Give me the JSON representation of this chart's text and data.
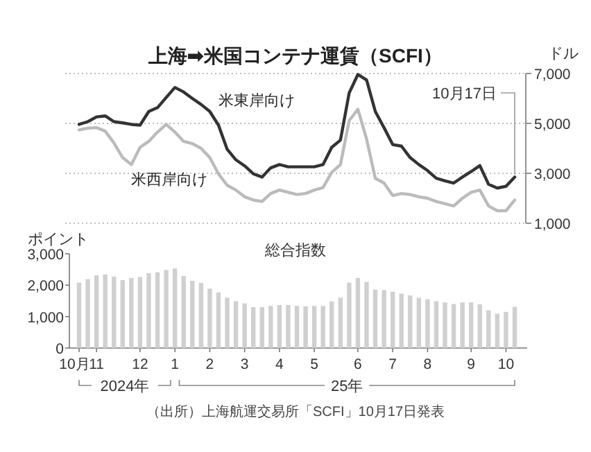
{
  "chart_data": [
    {
      "type": "line",
      "title": "上海➡米国コンテナ運賃（SCFI）",
      "ylabel": "ドル",
      "tick_labels": "y",
      "grid": "y",
      "categories": [
        null,
        null,
        null,
        null,
        null,
        null,
        null,
        null,
        null,
        null,
        null,
        null,
        null,
        null,
        null,
        null,
        null,
        null,
        null,
        null,
        null,
        null,
        null,
        null,
        null,
        null,
        null,
        null,
        null,
        null,
        null,
        null,
        null,
        null,
        null,
        null,
        null,
        null,
        null,
        null,
        null,
        null,
        null,
        null,
        null,
        null,
        null,
        null,
        null,
        null,
        null
      ],
      "ylim": [
        1000,
        7000
      ],
      "yticks": [
        {
          "value": 1000,
          "label": "1,000"
        },
        {
          "value": 3000,
          "label": "3,000"
        },
        {
          "value": 5000,
          "label": "5,000"
        },
        {
          "value": 7000,
          "label": "7,000"
        }
      ],
      "series": [
        {
          "name": "米東岸向け",
          "color": "#333333",
          "values": [
            4960,
            5070,
            5260,
            5300,
            5070,
            5020,
            4960,
            4930,
            5480,
            5630,
            6040,
            6440,
            6260,
            6000,
            5760,
            5480,
            4930,
            3960,
            3540,
            3300,
            2980,
            2850,
            3220,
            3350,
            3260,
            3260,
            3260,
            3260,
            3350,
            4040,
            4330,
            6220,
            6960,
            6740,
            5480,
            4830,
            4150,
            4090,
            3630,
            3350,
            3110,
            2800,
            2700,
            2610,
            2850,
            3070,
            3310,
            2560,
            2410,
            2480,
            2850
          ]
        },
        {
          "name": "米西岸向け",
          "color": "#bbbbbb",
          "values": [
            4740,
            4810,
            4830,
            4690,
            4220,
            3630,
            3350,
            4040,
            4280,
            4650,
            4960,
            4650,
            4280,
            4190,
            4000,
            3630,
            2980,
            2520,
            2330,
            2060,
            1930,
            1870,
            2190,
            2330,
            2240,
            2150,
            2190,
            2330,
            2430,
            3040,
            3350,
            5110,
            5570,
            4370,
            2800,
            2610,
            2110,
            2190,
            2150,
            2060,
            2000,
            1870,
            1780,
            1690,
            2000,
            2240,
            2330,
            1690,
            1500,
            1500,
            1930
          ]
        }
      ],
      "annotations": [
        "10月17日"
      ]
    },
    {
      "type": "bar",
      "title": "総合指数",
      "ylabel": "ポイント",
      "color": "#d0d0d0",
      "categories": [
        "10月",
        null,
        "11",
        null,
        null,
        null,
        null,
        "12",
        null,
        null,
        null,
        "1",
        null,
        null,
        null,
        "2",
        null,
        null,
        null,
        "3",
        null,
        null,
        null,
        "4",
        null,
        null,
        null,
        "5",
        null,
        null,
        null,
        null,
        "6",
        null,
        null,
        null,
        "7",
        null,
        null,
        null,
        "8",
        null,
        null,
        null,
        null,
        "9",
        null,
        null,
        null,
        "10",
        null
      ],
      "values": [
        2080,
        2190,
        2310,
        2340,
        2270,
        2160,
        2230,
        2260,
        2380,
        2410,
        2480,
        2530,
        2290,
        2140,
        2070,
        1890,
        1770,
        1600,
        1490,
        1420,
        1300,
        1300,
        1340,
        1370,
        1370,
        1340,
        1330,
        1340,
        1340,
        1480,
        1600,
        2080,
        2230,
        2100,
        1860,
        1840,
        1790,
        1730,
        1670,
        1600,
        1550,
        1490,
        1450,
        1400,
        1450,
        1450,
        1390,
        1200,
        1090,
        1150,
        1310
      ],
      "ylim": [
        0,
        3000
      ],
      "yticks": [
        0,
        {
          "value": 1000,
          "label": "1,000"
        },
        {
          "value": 2000,
          "label": "2,000"
        },
        {
          "value": 3000,
          "label": "3,000"
        }
      ],
      "annotations": [
        "2024年",
        "25年",
        "（出所）上海航運交易所「SCFI」10月17日発表"
      ]
    }
  ]
}
